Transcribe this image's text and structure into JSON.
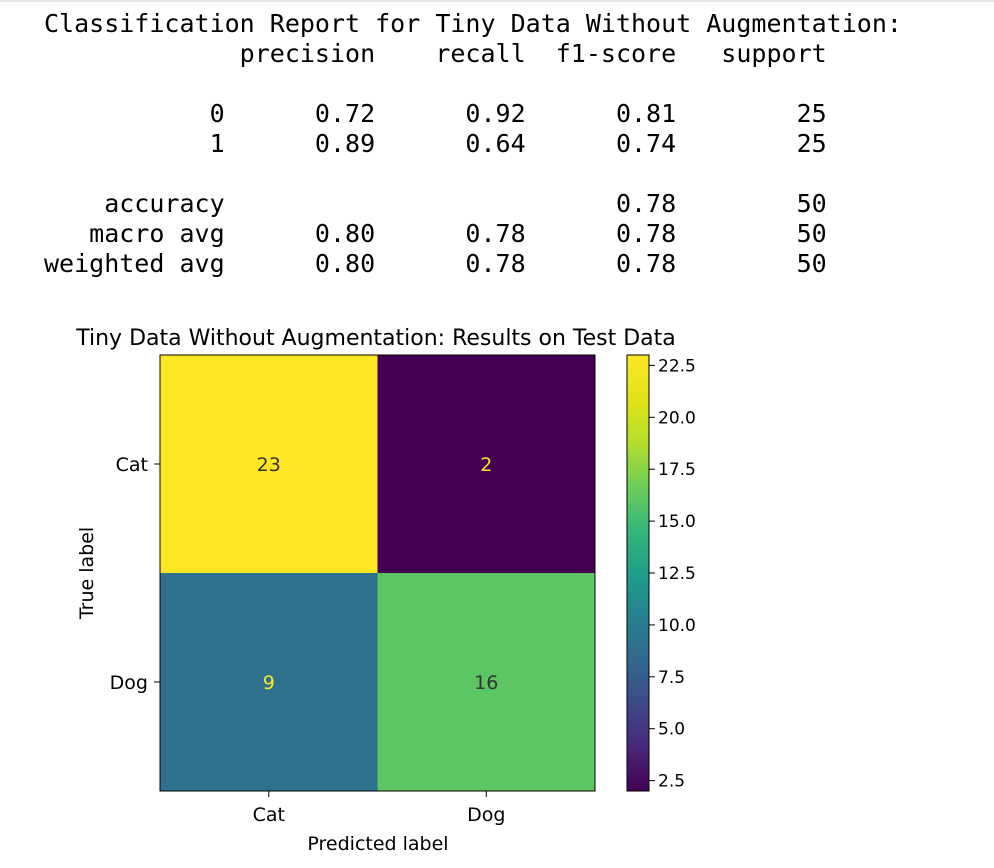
{
  "report": {
    "title": "Classification Report for Tiny Data Without Augmentation:",
    "columns": [
      "precision",
      "recall",
      "f1-score",
      "support"
    ],
    "rows": [
      {
        "label": "0",
        "precision": "0.72",
        "recall": "0.92",
        "f1": "0.81",
        "support": "25"
      },
      {
        "label": "1",
        "precision": "0.89",
        "recall": "0.64",
        "f1": "0.74",
        "support": "25"
      },
      {
        "label": "",
        "precision": "",
        "recall": "",
        "f1": "",
        "support": ""
      },
      {
        "label": "accuracy",
        "precision": "",
        "recall": "",
        "f1": "0.78",
        "support": "50"
      },
      {
        "label": "macro avg",
        "precision": "0.80",
        "recall": "0.78",
        "f1": "0.78",
        "support": "50"
      },
      {
        "label": "weighted avg",
        "precision": "0.80",
        "recall": "0.78",
        "f1": "0.78",
        "support": "50"
      }
    ]
  },
  "chart_data": {
    "type": "heatmap",
    "title": "Tiny Data Without Augmentation: Results on Test Data",
    "xlabel": "Predicted label",
    "ylabel": "True label",
    "x_categories": [
      "Cat",
      "Dog"
    ],
    "y_categories": [
      "Cat",
      "Dog"
    ],
    "matrix": [
      [
        23,
        2
      ],
      [
        9,
        16
      ]
    ],
    "colormap": "viridis",
    "colorbar": {
      "min": 2,
      "max": 23,
      "ticks": [
        2.5,
        5.0,
        7.5,
        10.0,
        12.5,
        15.0,
        17.5,
        20.0,
        22.5
      ],
      "tick_labels": [
        "2.5",
        "5.0",
        "7.5",
        "10.0",
        "12.5",
        "15.0",
        "17.5",
        "20.0",
        "22.5"
      ]
    }
  }
}
